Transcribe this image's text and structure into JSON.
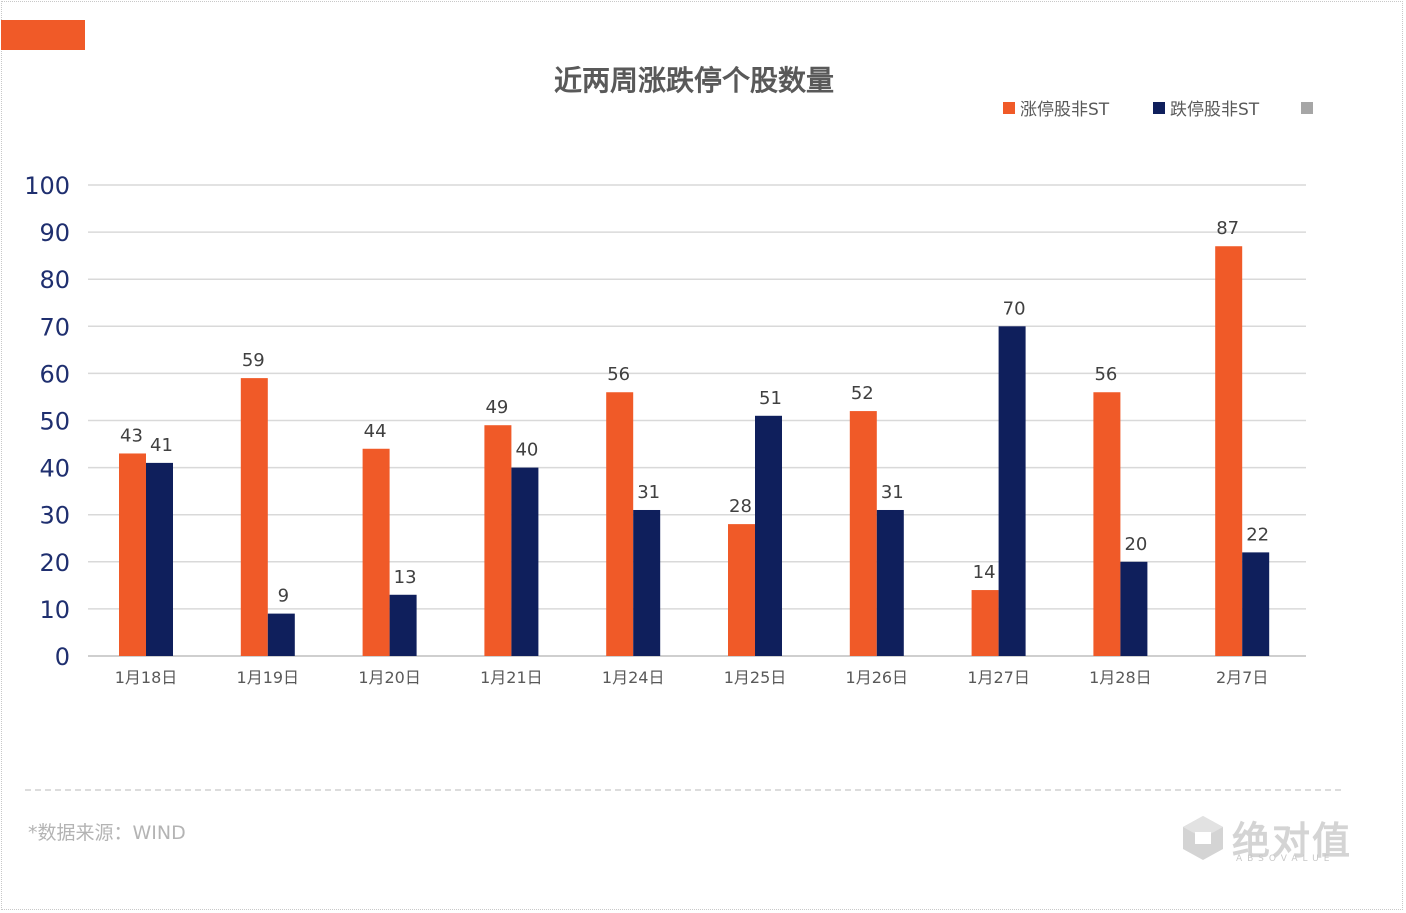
{
  "source_note": "*数据来源：WIND",
  "logo": {
    "text": "绝对值",
    "sub": "ABSOVALUE"
  },
  "colors": {
    "up": "#f05a28",
    "down": "#0f1f5c",
    "extra": "#a6a6a6",
    "grid": "#d9d9d9",
    "axis_text": "#1f2f6f"
  },
  "chart_data": {
    "type": "bar",
    "title": "近两周涨跌停个股数量",
    "categories": [
      "1月18日",
      "1月19日",
      "1月20日",
      "1月21日",
      "1月24日",
      "1月25日",
      "1月26日",
      "1月27日",
      "1月28日",
      "2月7日"
    ],
    "series": [
      {
        "name": "涨停股非ST",
        "values": [
          43,
          59,
          44,
          49,
          56,
          28,
          52,
          14,
          56,
          87
        ]
      },
      {
        "name": "跌停股非ST",
        "values": [
          41,
          9,
          13,
          40,
          31,
          51,
          31,
          70,
          20,
          22
        ]
      }
    ],
    "legend_extra": "",
    "ylim": [
      0,
      100
    ],
    "yticks": [
      0,
      10,
      20,
      30,
      40,
      50,
      60,
      70,
      80,
      90,
      100
    ],
    "grid": true,
    "legend_position": "top-right",
    "xlabel": "",
    "ylabel": ""
  }
}
